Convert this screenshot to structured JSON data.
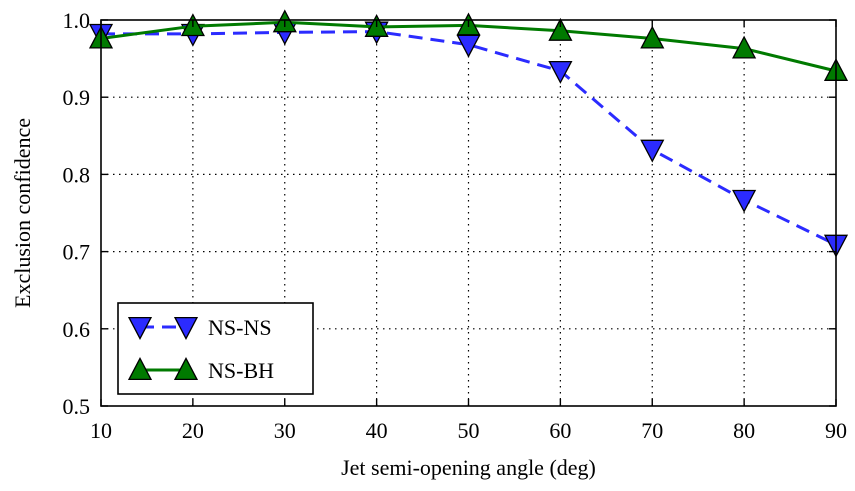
{
  "chart_data": {
    "type": "line",
    "title": "",
    "xlabel": "Jet semi-opening angle (deg)",
    "ylabel": "Exclusion confidence",
    "xlim": [
      10,
      90
    ],
    "ylim": [
      0.5,
      1.0
    ],
    "x": [
      10,
      20,
      30,
      40,
      50,
      60,
      70,
      80,
      90
    ],
    "xticks": [
      "10",
      "20",
      "30",
      "40",
      "50",
      "60",
      "70",
      "80",
      "90"
    ],
    "yticks": [
      "0.5",
      "0.6",
      "0.7",
      "0.8",
      "0.9",
      "1.0"
    ],
    "grid": true,
    "legend_position": "lower-left",
    "series": [
      {
        "name": "NS-NS",
        "values": [
          0.982,
          0.982,
          0.984,
          0.985,
          0.968,
          0.934,
          0.832,
          0.767,
          0.709
        ],
        "color": "#2b2bff",
        "line_style": "dashed",
        "marker": "triangle-down"
      },
      {
        "name": "NS-BH",
        "values": [
          0.976,
          0.992,
          0.997,
          0.991,
          0.993,
          0.986,
          0.976,
          0.963,
          0.934
        ],
        "color": "#007a00",
        "line_style": "solid",
        "marker": "triangle-up"
      }
    ]
  }
}
